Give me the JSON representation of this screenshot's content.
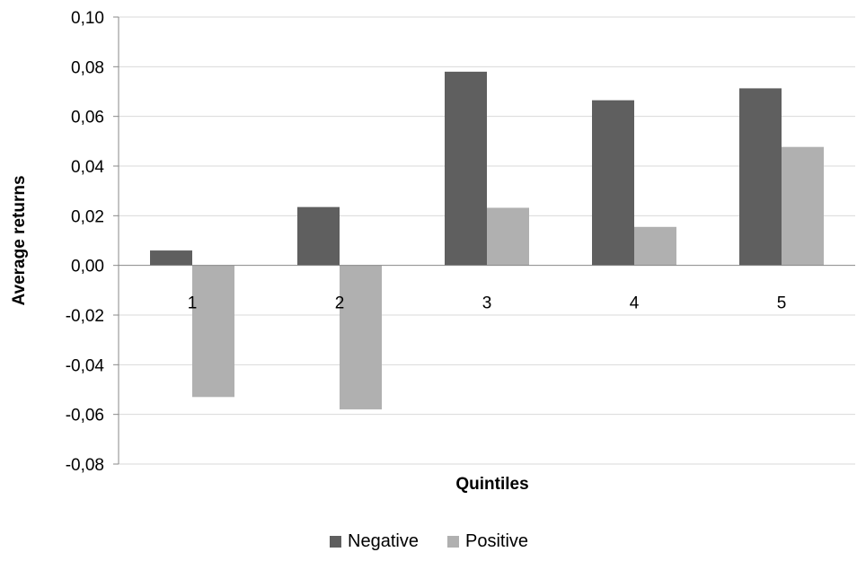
{
  "chart_data": {
    "type": "bar",
    "categories": [
      "1",
      "2",
      "3",
      "4",
      "5"
    ],
    "series": [
      {
        "name": "Negative",
        "color": "#5f5f5f",
        "values": [
          0.006,
          0.0235,
          0.078,
          0.0665,
          0.0713
        ]
      },
      {
        "name": "Positive",
        "color": "#b0b0b0",
        "values": [
          -0.053,
          -0.058,
          0.0232,
          0.0155,
          0.0477
        ]
      }
    ],
    "xlabel": "Quintiles",
    "ylabel": "Average returns",
    "ylim": [
      -0.08,
      0.1
    ],
    "yticks": [
      0.1,
      0.08,
      0.06,
      0.04,
      0.02,
      0.0,
      -0.02,
      -0.04,
      -0.06,
      -0.08
    ],
    "ytick_labels": [
      "0,10",
      "0,08",
      "0,06",
      "0,04",
      "0,02",
      "0,00",
      "-0,02",
      "-0,04",
      "-0,06",
      "-0,08"
    ],
    "grid": true,
    "legend_position": "bottom-center",
    "gridline_color": "#d9d9d9",
    "axis_color": "#888888"
  }
}
